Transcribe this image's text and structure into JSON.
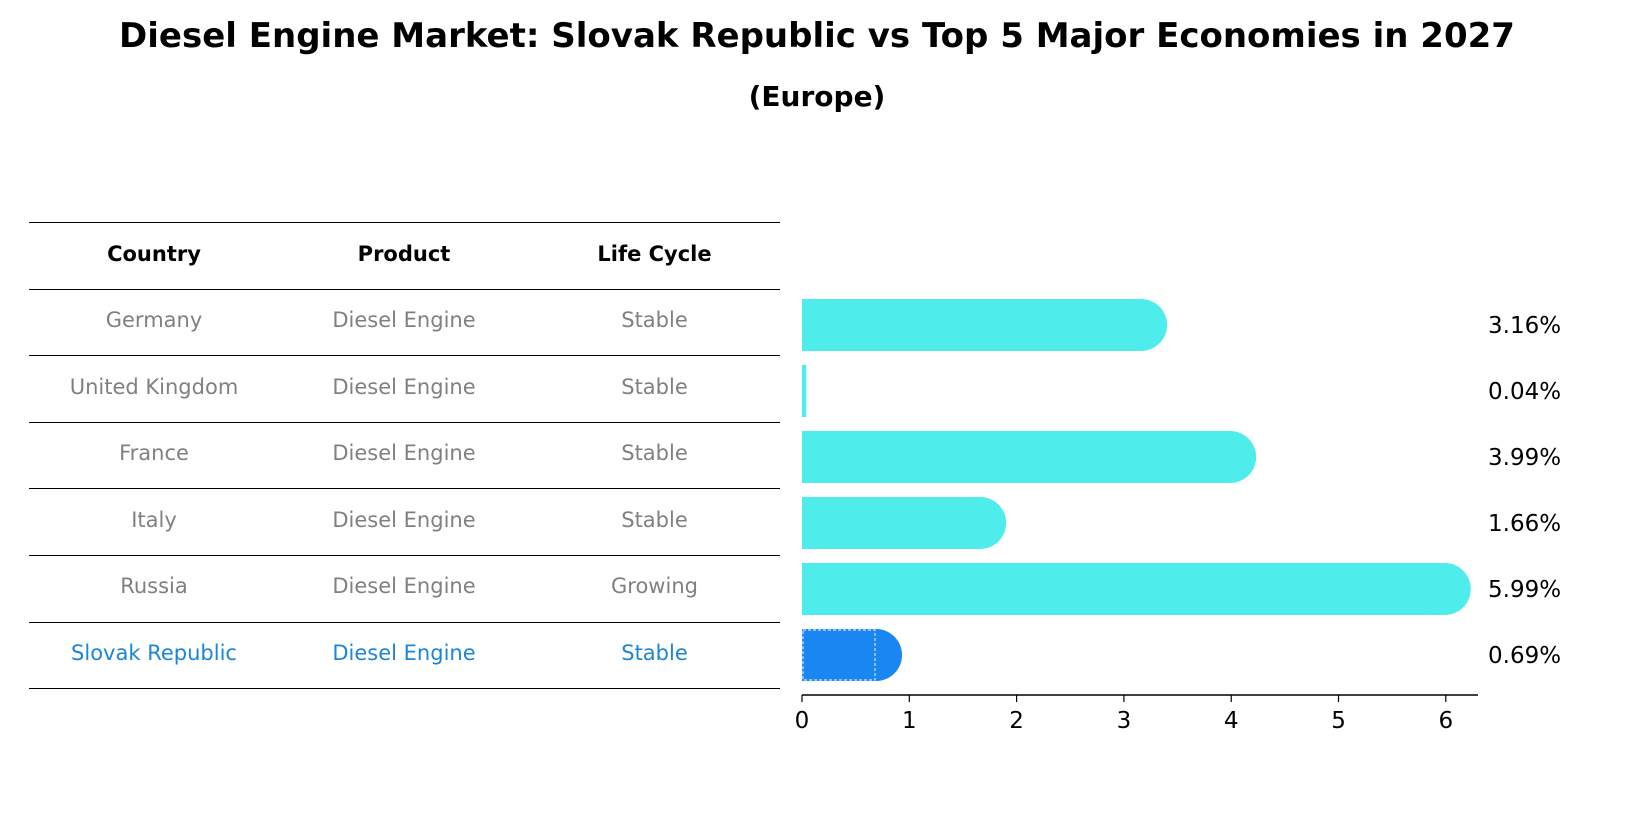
{
  "title": "Diesel Engine Market: Slovak Republic vs Top 5 Major Economies in 2027",
  "subtitle": "(Europe)",
  "table": {
    "headers": [
      "Country",
      "Product",
      "Life Cycle"
    ],
    "rows": [
      [
        "Germany",
        "Diesel Engine",
        "Stable"
      ],
      [
        "United Kingdom",
        "Diesel Engine",
        "Stable"
      ],
      [
        "France",
        "Diesel Engine",
        "Stable"
      ],
      [
        "Italy",
        "Diesel Engine",
        "Stable"
      ],
      [
        "Russia",
        "Diesel Engine",
        "Growing"
      ],
      [
        "Slovak Republic",
        "Diesel Engine",
        "Stable"
      ]
    ],
    "highlight_row": 5
  },
  "colors": {
    "bar": "#4eecea",
    "highlight_bar": "#1a86f2",
    "highlight_text": "#1a86d8",
    "row_text": "#808080"
  },
  "chart_data": {
    "type": "bar",
    "orientation": "horizontal",
    "categories": [
      "Germany",
      "United Kingdom",
      "France",
      "Italy",
      "Russia",
      "Slovak Republic"
    ],
    "values": [
      3.16,
      0.04,
      3.99,
      1.66,
      5.99,
      0.69
    ],
    "value_labels": [
      "3.16%",
      "0.04%",
      "3.99%",
      "1.66%",
      "5.99%",
      "0.69%"
    ],
    "xlim": [
      0,
      6.3
    ],
    "xticks": [
      0,
      1,
      2,
      3,
      4,
      5,
      6
    ],
    "highlight_index": 5,
    "grid": false,
    "legend": "none"
  }
}
